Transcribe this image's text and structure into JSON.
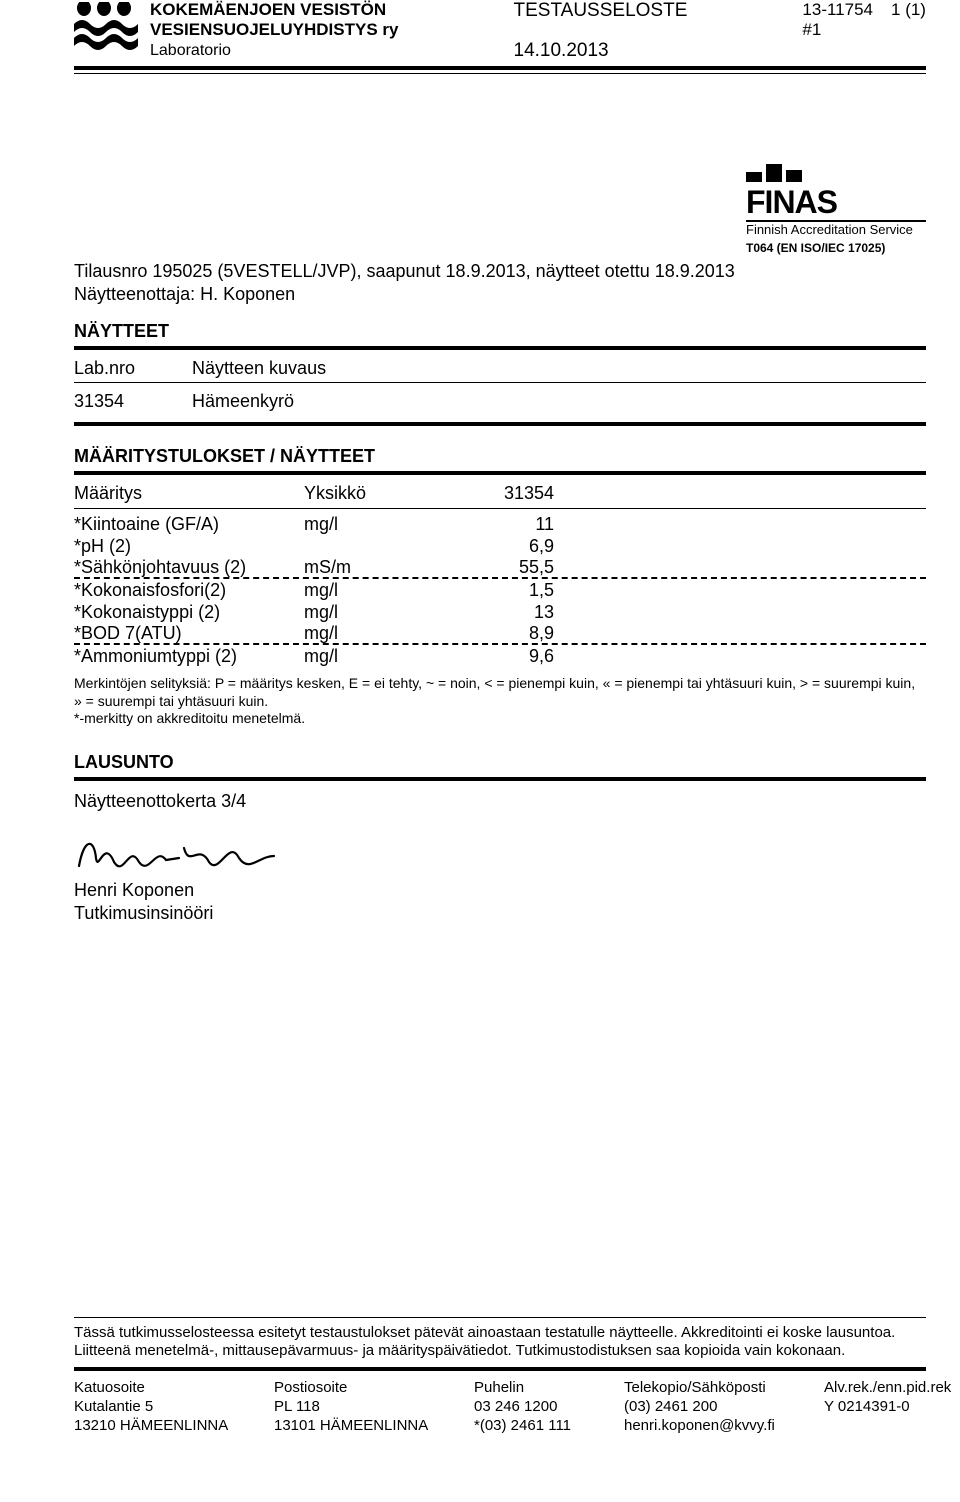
{
  "header": {
    "org_line1": "KOKEMÄENJOEN VESISTÖN",
    "org_line2": "VESIENSUOJELUYHDISTYS ry",
    "org_line3": "Laboratorio",
    "center_title": "TESTAUSSELOSTE",
    "center_date": "14.10.2013",
    "report_no": "13-11754",
    "report_sub": "#1",
    "page_no": "1 (1)"
  },
  "finas": {
    "name": "FINAS",
    "subtitle": "Finnish Accreditation Service",
    "code": "T064 (EN ISO/IEC 17025)"
  },
  "order": {
    "line1": "Tilausnro 195025 (5VESTELL/JVP), saapunut 18.9.2013, näytteet otettu 18.9.2013",
    "line2": "Näytteenottaja: H. Koponen"
  },
  "samples": {
    "title": "NÄYTTEET",
    "col1_head": "Lab.nro",
    "col2_head": "Näytteen kuvaus",
    "rows": [
      {
        "id": "31354",
        "desc": "Hämeenkyrö"
      }
    ]
  },
  "results": {
    "title": "MÄÄRITYSTULOKSET / NÄYTTEET",
    "col1_head": "Määritys",
    "col2_head": "Yksikkö",
    "col3_head": "31354",
    "rows": [
      {
        "name": "*Kiintoaine (GF/A)",
        "unit": "mg/l",
        "val": "11",
        "dashed": false
      },
      {
        "name": "*pH (2)",
        "unit": "",
        "val": "6,9",
        "dashed": false
      },
      {
        "name": "*Sähkönjohtavuus (2)",
        "unit": "mS/m",
        "val": "55,5",
        "dashed": true
      },
      {
        "name": "*Kokonaisfosfori(2)",
        "unit": "mg/l",
        "val": "1,5",
        "dashed": false
      },
      {
        "name": "*Kokonaistyppi (2)",
        "unit": "mg/l",
        "val": "13",
        "dashed": false
      },
      {
        "name": "*BOD 7(ATU)",
        "unit": "mg/l",
        "val": "8,9",
        "dashed": true
      },
      {
        "name": "*Ammoniumtyppi (2)",
        "unit": "mg/l",
        "val": "9,6",
        "dashed": false
      }
    ]
  },
  "legend": {
    "line1": "Merkintöjen selityksiä: P = määritys kesken, E = ei tehty, ~ = noin, < = pienempi kuin, « = pienempi tai yhtäsuuri kuin, > = suurempi kuin,",
    "line2": "» = suurempi tai yhtäsuuri kuin.",
    "line3": "*-merkitty on akkreditoitu menetelmä."
  },
  "statement": {
    "title": "LAUSUNTO",
    "round": "Näytteenottokerta 3/4",
    "signer_name": "Henri Koponen",
    "signer_title": "Tutkimusinsinööri"
  },
  "footer": {
    "note1": "Tässä tutkimusselosteessa esitetyt testaustulokset pätevät ainoastaan testatulle näytteelle. Akkreditointi ei koske lausuntoa.",
    "note2": "Liitteenä menetelmä-, mittausepävarmuus- ja määrityspäivätiedot. Tutkimustodistuksen saa kopioida vain kokonaan.",
    "cols": [
      {
        "h": "Katuosoite",
        "l1": "Kutalantie 5",
        "l2": "13210 HÄMEENLINNA"
      },
      {
        "h": "Postiosoite",
        "l1": "PL 118",
        "l2": "13101 HÄMEENLINNA"
      },
      {
        "h": "Puhelin",
        "l1": "03 246 1200",
        "l2": "*(03) 2461 111"
      },
      {
        "h": "Telekopio/Sähköposti",
        "l1": "(03) 2461 200",
        "l2": "henri.koponen@kvvy.fi"
      },
      {
        "h": "Alv.rek./enn.pid.rek",
        "l1": "Y 0214391-0",
        "l2": ""
      }
    ]
  }
}
